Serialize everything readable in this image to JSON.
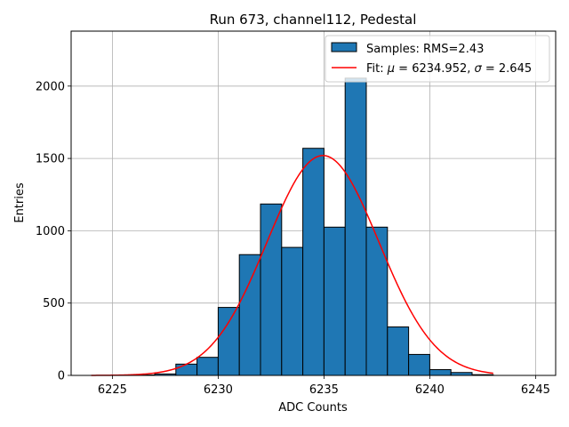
{
  "chart_data": {
    "type": "bar",
    "title": "Run 673, channel112, Pedestal",
    "xlabel": "ADC Counts",
    "ylabel": "Entries",
    "xlim": [
      6223.05,
      6245.95
    ],
    "ylim": [
      0,
      2380
    ],
    "xticks": [
      6225,
      6230,
      6235,
      6240,
      6245
    ],
    "yticks": [
      0,
      500,
      1000,
      1500,
      2000
    ],
    "grid": true,
    "legend_position": "top-right",
    "histogram": {
      "name": "Samples: RMS=2.43",
      "bin_edges": [
        6224,
        6225,
        6226,
        6227,
        6228,
        6229,
        6230,
        6231,
        6232,
        6233,
        6234,
        6235,
        6236,
        6237,
        6238,
        6239,
        6240,
        6241,
        6242,
        6243
      ],
      "counts": [
        0,
        0,
        3,
        10,
        78,
        125,
        470,
        835,
        1185,
        885,
        1570,
        1025,
        2055,
        1025,
        335,
        145,
        40,
        20,
        5
      ],
      "color": "#1f77b4",
      "edgecolor": "#000000"
    },
    "fit": {
      "name": "Fit: μ = 6234.952, σ = 2.645",
      "legend_parts": [
        "Fit: ",
        "μ",
        " = 6234.952, ",
        "σ",
        " = 2.645"
      ],
      "mu": 6234.952,
      "sigma": 2.645,
      "amplitude": 1520,
      "x_range": [
        6224,
        6243
      ],
      "color": "#ff0000"
    }
  }
}
